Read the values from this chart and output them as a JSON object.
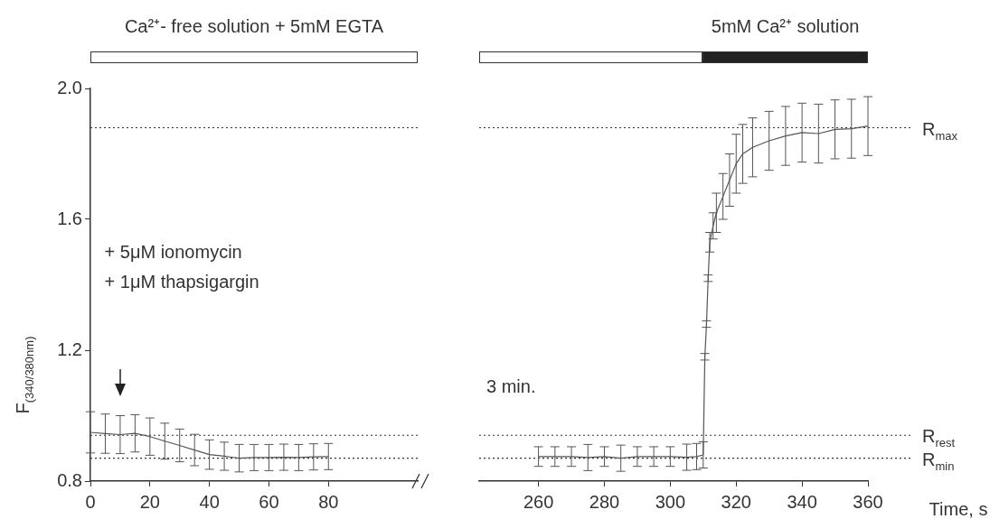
{
  "chart_data": [
    {
      "type": "line",
      "ylabel": "F$_{(340/380nm)}$",
      "x": [
        0,
        5,
        10,
        15,
        20,
        25,
        30,
        35,
        40,
        45,
        50,
        55,
        60,
        65,
        70,
        75,
        80
      ],
      "series": [
        {
          "color": "#555555",
          "values": [
            0.949,
            0.945,
            0.942,
            0.946,
            0.936,
            0.922,
            0.909,
            0.895,
            0.881,
            0.876,
            0.87,
            0.872,
            0.872,
            0.873,
            0.872,
            0.874,
            0.875
          ],
          "errors": [
            0.063,
            0.06,
            0.058,
            0.057,
            0.057,
            0.055,
            0.05,
            0.048,
            0.045,
            0.043,
            0.042,
            0.04,
            0.04,
            0.04,
            0.04,
            0.04,
            0.04
          ]
        }
      ],
      "xlim": [
        0,
        110
      ],
      "xticks": [
        0,
        20,
        40,
        60,
        80
      ],
      "ylim": [
        0.8,
        2.0
      ],
      "yticks": [
        {
          "value": 0.8,
          "label": "0.8"
        },
        {
          "value": 1.2,
          "label": "1.2"
        },
        {
          "value": 1.6,
          "label": "1.6"
        },
        {
          "value": 2.0,
          "label": "2.0"
        }
      ],
      "grid": false,
      "legend": false,
      "marker": "none",
      "line_style": "solid",
      "ref_lines": [
        {
          "axis": "y",
          "value": 1.88,
          "color": "#333333",
          "line_style": "dotted"
        },
        {
          "axis": "y",
          "value": 0.94,
          "color": "#333333",
          "line_style": "dotted"
        },
        {
          "axis": "y",
          "value": 0.87,
          "color": "#333333",
          "line_style": "dotted"
        }
      ],
      "annotations": [
        "Ca²⁺- free solution + 5mM EGTA",
        "+ 5μM ionomycin\n+ 1μM thapsigargin"
      ]
    },
    {
      "type": "line",
      "xlabel": "Time, s",
      "x": [
        260,
        265,
        270,
        275,
        280,
        285,
        290,
        295,
        300,
        305,
        308,
        310,
        310.5,
        311,
        311.5,
        312,
        313,
        314,
        316,
        318,
        320,
        322,
        325,
        330,
        335,
        340,
        345,
        350,
        355,
        360
      ],
      "series": [
        {
          "color": "#555555",
          "values": [
            0.875,
            0.875,
            0.875,
            0.872,
            0.875,
            0.87,
            0.875,
            0.875,
            0.875,
            0.873,
            0.875,
            0.88,
            1.18,
            1.28,
            1.42,
            1.53,
            1.58,
            1.62,
            1.67,
            1.72,
            1.77,
            1.8,
            1.82,
            1.84,
            1.855,
            1.865,
            1.862,
            1.875,
            1.877,
            1.885
          ],
          "errors": [
            0.03,
            0.03,
            0.03,
            0.04,
            0.03,
            0.04,
            0.03,
            0.03,
            0.03,
            0.04,
            0.04,
            0.04,
            0.01,
            0.01,
            0.01,
            0.03,
            0.04,
            0.06,
            0.07,
            0.08,
            0.09,
            0.09,
            0.09,
            0.09,
            0.09,
            0.09,
            0.09,
            0.09,
            0.09,
            0.09
          ]
        }
      ],
      "xlim": [
        242,
        360
      ],
      "xticks": [
        260,
        280,
        300,
        320,
        340,
        360
      ],
      "ylim": [
        0.8,
        2.0
      ],
      "tick_labels": "x",
      "grid": false,
      "legend": false,
      "marker": "none",
      "line_style": "solid",
      "ref_lines": [
        {
          "axis": "y",
          "value": 1.88,
          "color": "#333333",
          "line_style": "dotted",
          "label": "R$_{max}$"
        },
        {
          "axis": "y",
          "value": 0.94,
          "color": "#333333",
          "line_style": "dotted",
          "label": "R$_{rest}$"
        },
        {
          "axis": "y",
          "value": 0.87,
          "color": "#333333",
          "line_style": "dotted",
          "label": "R$_{min}$"
        }
      ],
      "annotations": [
        "5mM Ca²⁺ solution",
        "3 min."
      ]
    }
  ]
}
